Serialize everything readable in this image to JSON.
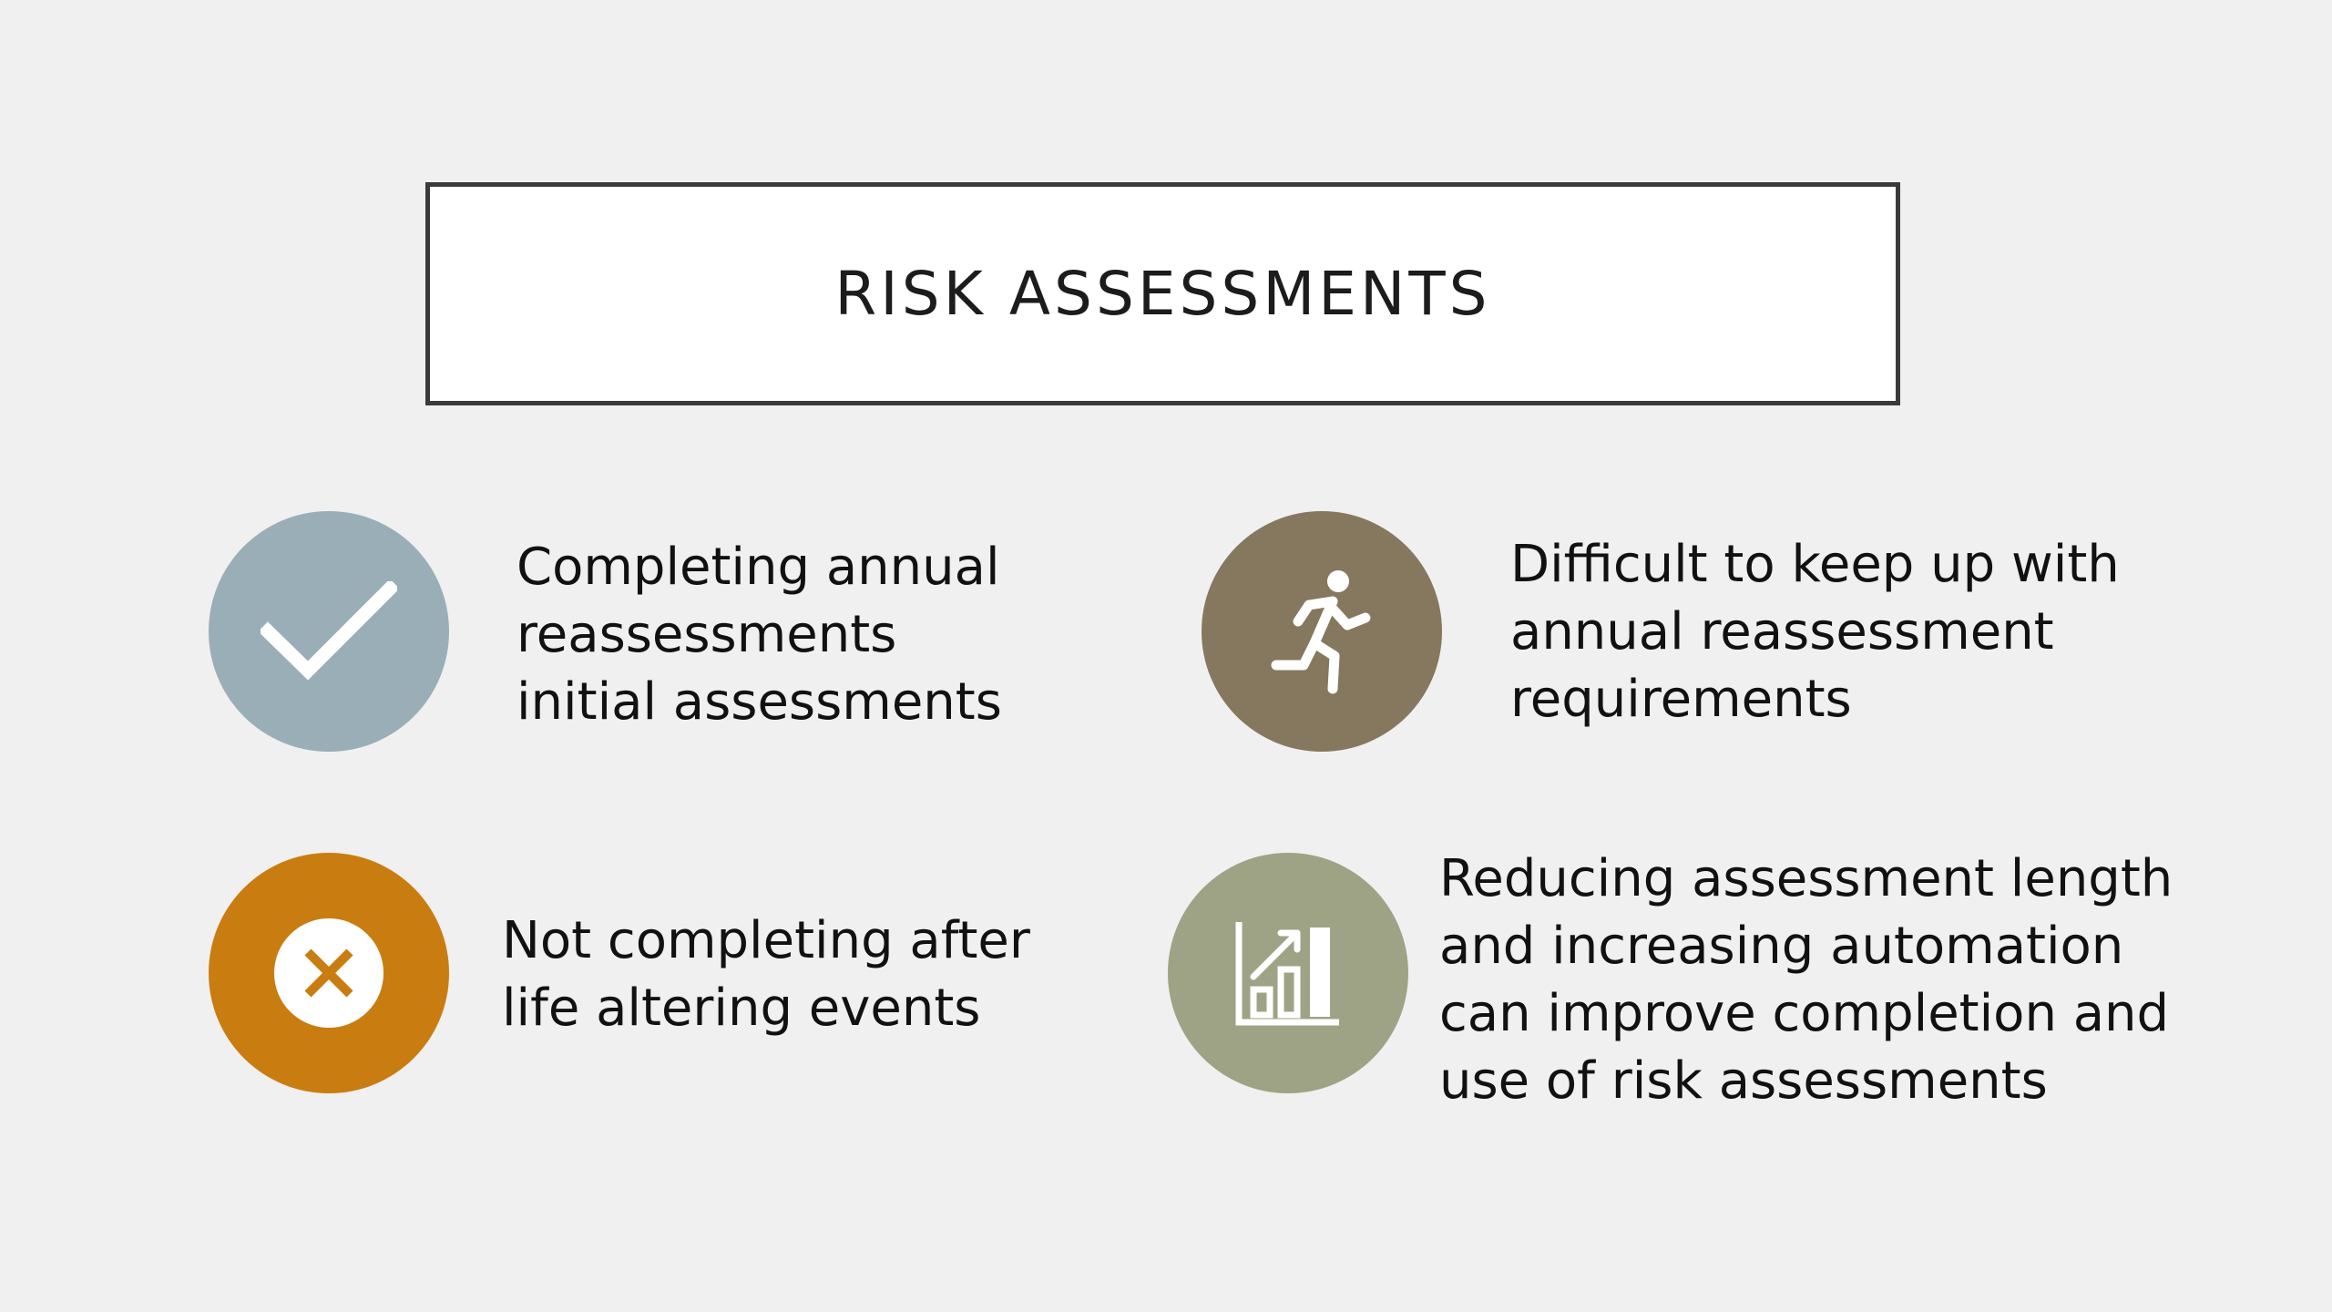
{
  "slide": {
    "title": "RISK ASSESSMENTS"
  },
  "items": [
    {
      "icon": "checkmark-icon",
      "color": "#9aaeb7",
      "text": "Completing annual reassessments initial assessments"
    },
    {
      "icon": "running-person-icon",
      "color": "#86785e",
      "text": "Difficult to keep up with annual reassessment requirements"
    },
    {
      "icon": "close-circle-icon",
      "color": "#c97d10",
      "text": "Not completing after life altering events"
    },
    {
      "icon": "bar-chart-growth-icon",
      "color": "#9fa386",
      "text": "Reducing assessment length and increasing automation can improve completion and use of risk assessments"
    }
  ]
}
